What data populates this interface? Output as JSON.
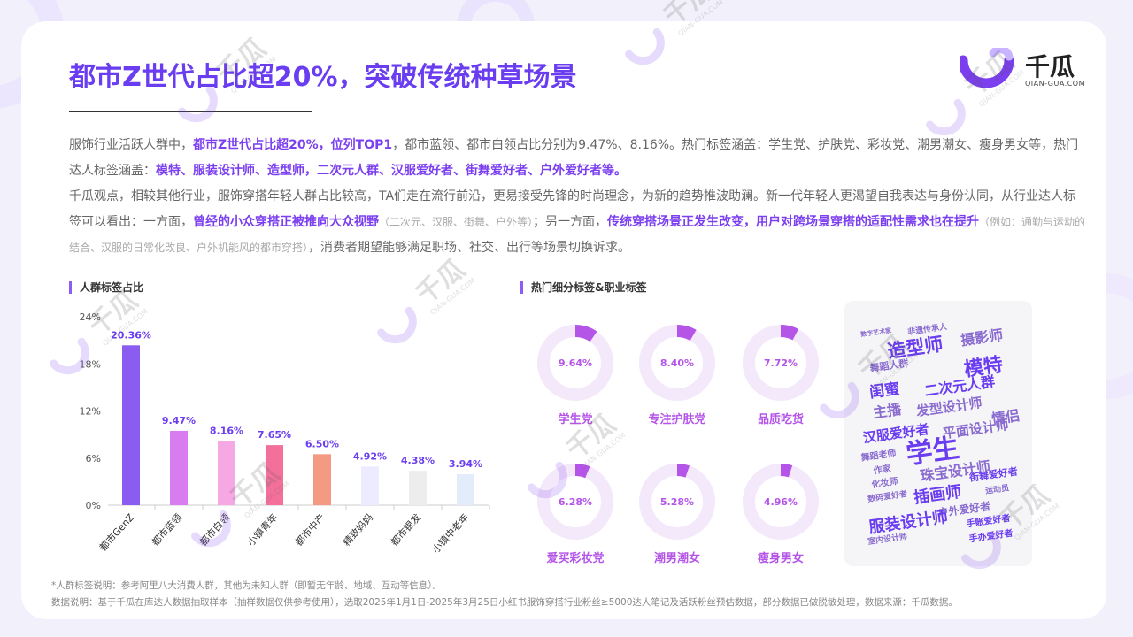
{
  "title": "都市Z世代占比超20%，突破传统种草场景",
  "logo": {
    "name": "千瓜",
    "sub": "QIAN-GUA.COM",
    "color": "#7b3ff0"
  },
  "paragraph1": {
    "a": "服饰行业活跃人群中，",
    "b": "都市Z世代占比超20%，位列TOP1",
    "c": "，都市蓝领、都市白领占比分别为9.47%、8.16%。热门标签涵盖：学生党、护肤党、彩妆党、潮男潮女、瘦身男女等，热门达人标签涵盖：",
    "d": "模特、服装设计师、造型师，二次元人群、汉服爱好者、街舞爱好者、户外爱好者等。"
  },
  "paragraph2": {
    "a": "千瓜观点，相较其他行业，服饰穿搭年轻人群占比较高，TA们走在流行前沿，更易接受先锋的时尚理念，为新的趋势推波助澜。新一代年轻人更渴望自我表达与身份认同，从行业达人标签可以看出：一方面，",
    "b": "曾经的小众穿搭正被推向大众视野",
    "c": "（二次元、汉服、街舞、户外等）",
    "d": "；另一方面，",
    "e": "传统穿搭场景正发生改变，用户对跨场景穿搭的适配性需求也在提升",
    "f": "（例如：通勤与运动的结合、汉服的日常化改良、户外机能风的都市穿搭）",
    "g": "，消费者期望能够满足职场、社交、出行等场景切换诉求。"
  },
  "left_section_label": "人群标签占比",
  "right_section_label": "热门细分标签&职业标签",
  "chart_data": [
    {
      "type": "bar",
      "categories": [
        "都市GenZ",
        "都市蓝领",
        "都市白领",
        "小镇青年",
        "都市中产",
        "精致妈妈",
        "都市银发",
        "小镇中老年"
      ],
      "values": [
        20.36,
        9.47,
        8.16,
        7.65,
        6.5,
        4.92,
        4.38,
        3.94
      ],
      "value_labels": [
        "20.36%",
        "9.47%",
        "8.16%",
        "7.65%",
        "6.50%",
        "4.92%",
        "4.38%",
        "3.94%"
      ],
      "colors": [
        "#8a5cf0",
        "#d87df0",
        "#f6a8e4",
        "#f2709a",
        "#f59a82",
        "#ecebff",
        "#ededed",
        "#e2ecfb"
      ],
      "yticks": [
        "0%",
        "6%",
        "12%",
        "18%",
        "24%"
      ],
      "ylim": [
        0,
        24
      ]
    },
    {
      "type": "pie",
      "items": [
        {
          "label": "学生党",
          "value": 9.64,
          "text": "9.64%"
        },
        {
          "label": "专注护肤党",
          "value": 8.4,
          "text": "8.40%"
        },
        {
          "label": "品质吃货",
          "value": 7.72,
          "text": "7.72%"
        },
        {
          "label": "爱买彩妆党",
          "value": 6.28,
          "text": "6.28%"
        },
        {
          "label": "潮男潮女",
          "value": 5.28,
          "text": "5.28%"
        },
        {
          "label": "瘦身男女",
          "value": 4.96,
          "text": "4.96%"
        }
      ],
      "ring_color": "#f4e8fb",
      "value_color": "#b455e8"
    }
  ],
  "wordcloud": [
    {
      "text": "数字艺术家",
      "x": 990,
      "y": 378,
      "size": 7,
      "color": "#8a6cd0",
      "rot": -8
    },
    {
      "text": "非遗传承人",
      "x": 1048,
      "y": 375,
      "size": 9,
      "color": "#8a6cd0",
      "rot": -8
    },
    {
      "text": "造型师",
      "x": 1035,
      "y": 400,
      "size": 21,
      "color": "#6a3df0",
      "rot": -8
    },
    {
      "text": "摄影师",
      "x": 1110,
      "y": 387,
      "size": 16,
      "color": "#8a6cd0",
      "rot": -8
    },
    {
      "text": "模特",
      "x": 1112,
      "y": 422,
      "size": 22,
      "color": "#6a3df0",
      "rot": -8
    },
    {
      "text": "舞蹈人群",
      "x": 1005,
      "y": 417,
      "size": 11,
      "color": "#8a6cd0",
      "rot": -8
    },
    {
      "text": "闺蜜",
      "x": 1000,
      "y": 447,
      "size": 17,
      "color": "#6a3df0",
      "rot": -8
    },
    {
      "text": "二次元人群",
      "x": 1085,
      "y": 442,
      "size": 16,
      "color": "#6a3df0",
      "rot": -8
    },
    {
      "text": "主播",
      "x": 1003,
      "y": 470,
      "size": 16,
      "color": "#8a6cd0",
      "rot": -8
    },
    {
      "text": "发型设计师",
      "x": 1073,
      "y": 465,
      "size": 15,
      "color": "#8a6cd0",
      "rot": -8
    },
    {
      "text": "情侣",
      "x": 1137,
      "y": 477,
      "size": 16,
      "color": "#8a6cd0",
      "rot": -8
    },
    {
      "text": "汉服爱好者",
      "x": 1013,
      "y": 495,
      "size": 15,
      "color": "#6a3df0",
      "rot": -8
    },
    {
      "text": "平面设计师",
      "x": 1103,
      "y": 490,
      "size": 15,
      "color": "#8a6cd0",
      "rot": -8
    },
    {
      "text": "舞蹈老师",
      "x": 993,
      "y": 518,
      "size": 10,
      "color": "#8a6cd0",
      "rot": -8
    },
    {
      "text": "学生",
      "x": 1055,
      "y": 520,
      "size": 30,
      "color": "#6a3df0",
      "rot": -8
    },
    {
      "text": "珠宝设计师",
      "x": 1080,
      "y": 538,
      "size": 16,
      "color": "#8a6cd0",
      "rot": -8
    },
    {
      "text": "作家",
      "x": 997,
      "y": 534,
      "size": 10,
      "color": "#8a6cd0",
      "rot": -8
    },
    {
      "text": "化妆师",
      "x": 1000,
      "y": 549,
      "size": 10,
      "color": "#8a6cd0",
      "rot": -8
    },
    {
      "text": "插画师",
      "x": 1060,
      "y": 565,
      "size": 18,
      "color": "#6a3df0",
      "rot": -8
    },
    {
      "text": "街舞爱好者",
      "x": 1123,
      "y": 540,
      "size": 11,
      "color": "#6a3df0",
      "rot": -8
    },
    {
      "text": "数码爱好者",
      "x": 1003,
      "y": 564,
      "size": 9,
      "color": "#8a6cd0",
      "rot": -8
    },
    {
      "text": "运动员",
      "x": 1127,
      "y": 556,
      "size": 9,
      "color": "#8a6cd0",
      "rot": -8
    },
    {
      "text": "户外爱好者",
      "x": 1090,
      "y": 580,
      "size": 12,
      "color": "#8a6cd0",
      "rot": -8
    },
    {
      "text": "服装设计师",
      "x": 1027,
      "y": 596,
      "size": 18,
      "color": "#6a3df0",
      "rot": -8
    },
    {
      "text": "手账爱好者",
      "x": 1117,
      "y": 592,
      "size": 10,
      "color": "#6a3df0",
      "rot": -8
    },
    {
      "text": "室内设计师",
      "x": 1003,
      "y": 612,
      "size": 9,
      "color": "#8a6cd0",
      "rot": -8
    },
    {
      "text": "手办爱好者",
      "x": 1120,
      "y": 609,
      "size": 10,
      "color": "#6a3df0",
      "rot": -8
    }
  ],
  "footer1": "*人群标签说明：参考阿里八大消费人群，其他为未知人群（即暂无年龄、地域、互动等信息）。",
  "footer2": "数据说明：基于千瓜在库达人数据抽取样本（抽样数据仅供参考使用），选取2025年1月1日-2025年3月25日小红书服饰穿搭行业粉丝≥5000达人笔记及活跃粉丝预估数据，部分数据已做脱敏处理，数据来源：千瓜数据。",
  "watermark": {
    "name": "千瓜",
    "sub": "QIAN-GUA.COM"
  }
}
